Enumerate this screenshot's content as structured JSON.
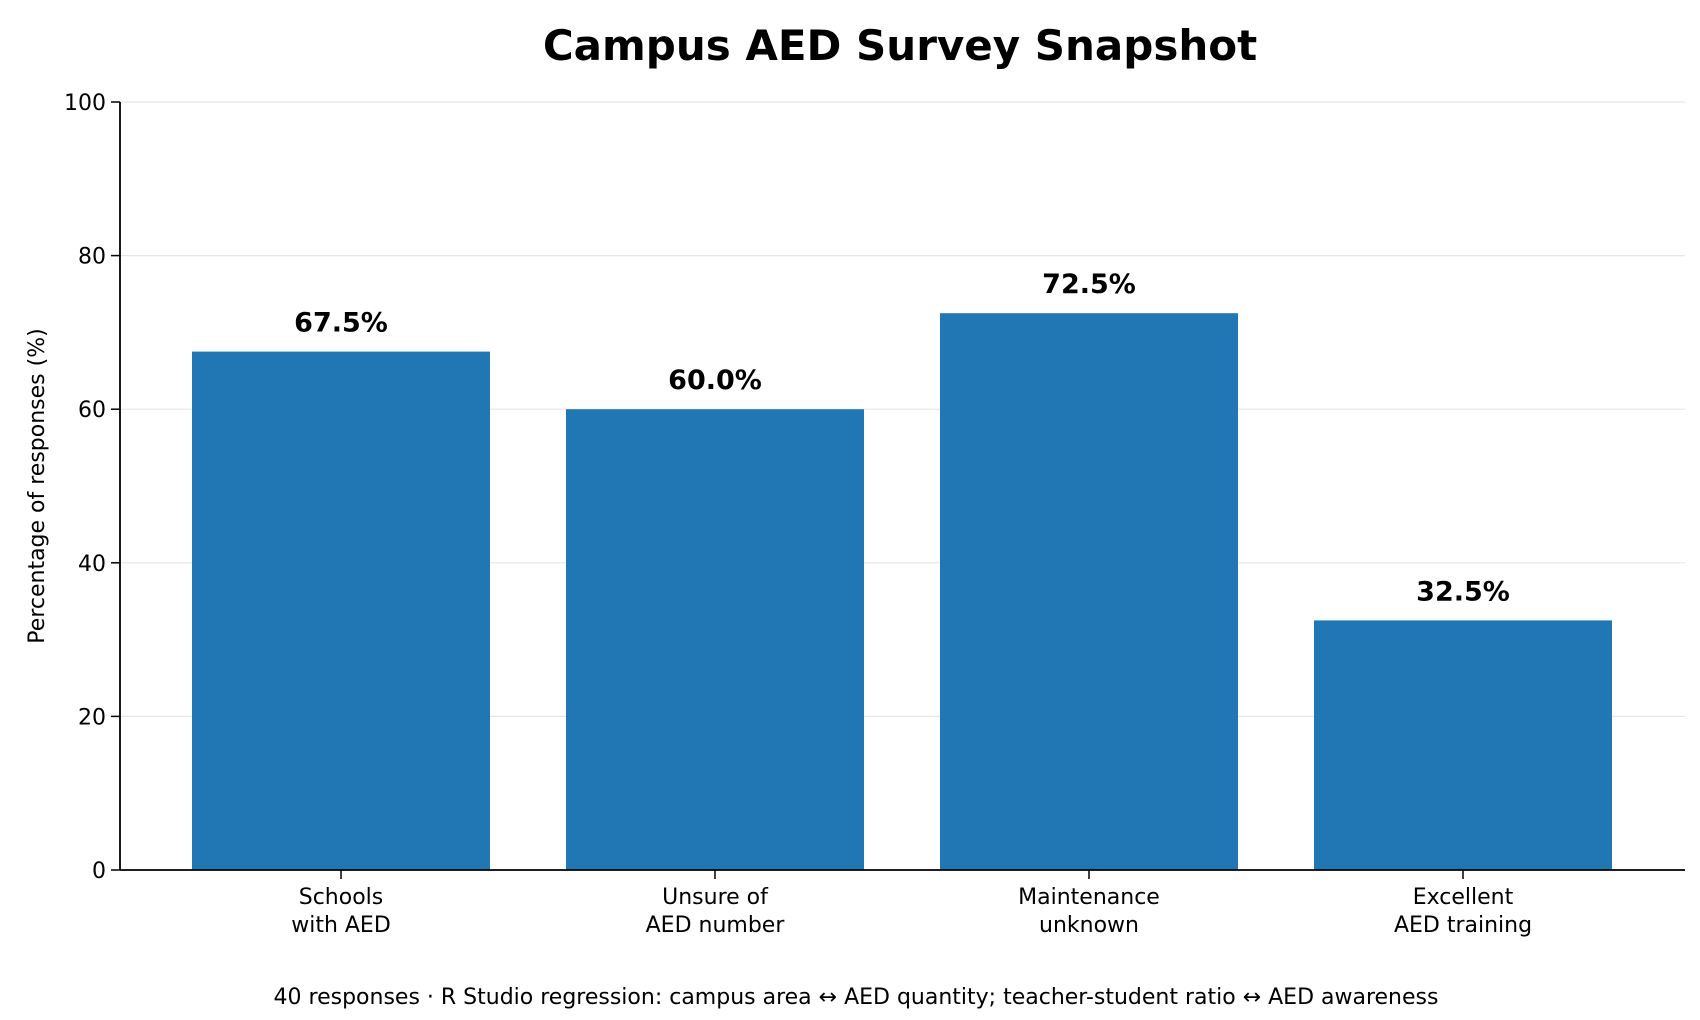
{
  "chart_data": {
    "type": "bar",
    "title": "Campus AED Survey Snapshot",
    "ylabel": "Percentage of responses (%)",
    "xlabel": "",
    "ylim": [
      0,
      100
    ],
    "yticks": [
      "0",
      "20",
      "40",
      "60",
      "80",
      "100"
    ],
    "grid": "horizontal",
    "categories": [
      [
        "Schools",
        "with AED"
      ],
      [
        "Unsure of",
        "AED number"
      ],
      [
        "Maintenance",
        "unknown"
      ],
      [
        "Excellent",
        "AED training"
      ]
    ],
    "values": [
      67.5,
      60.0,
      72.5,
      32.5
    ],
    "value_labels": [
      "67.5%",
      "60.0%",
      "72.5%",
      "32.5%"
    ],
    "bar_color": "#2077b4",
    "footnote": "40 responses · R Studio regression: campus area ↔ AED quantity; teacher-student ratio ↔ AED awareness"
  }
}
